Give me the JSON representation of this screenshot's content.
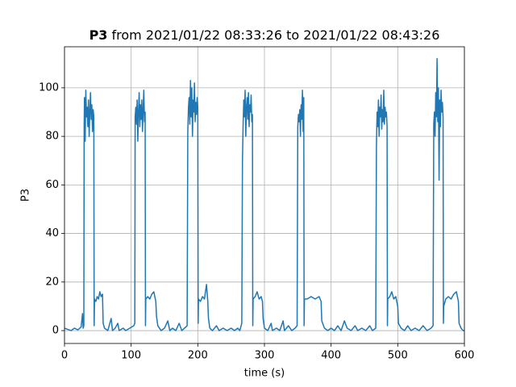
{
  "chart_data": {
    "type": "line",
    "title": {
      "name": "P3",
      "text": "from 2021/01/22 08:33:26 to 2021/01/22 08:43:26"
    },
    "x_label": "time (s)",
    "y_label": "P3",
    "xlim": [
      0,
      600
    ],
    "ylim": [
      -5.3,
      116.9
    ],
    "xticks": [
      0,
      100,
      200,
      300,
      400,
      500,
      600
    ],
    "yticks": [
      0,
      20,
      40,
      60,
      80,
      100
    ],
    "grid": true,
    "series": [
      {
        "name": "P3",
        "color": "#1f77b4",
        "x": [
          0,
          5,
          10,
          15,
          20,
          25,
          27,
          28,
          29,
          29.5,
          30,
          31,
          32,
          33,
          34,
          35,
          36,
          37,
          38,
          39,
          40,
          41,
          42,
          43,
          44,
          44.5,
          45,
          47,
          49,
          51,
          53,
          55,
          57,
          58,
          60,
          65,
          70,
          72,
          76,
          80,
          82,
          88,
          92,
          98,
          104,
          105.5,
          106,
          107,
          108,
          109,
          110,
          111,
          112,
          113,
          114,
          115,
          116,
          117,
          118,
          119,
          120,
          121,
          121.5,
          122,
          125,
          128,
          131,
          134,
          137,
          138,
          140,
          145,
          150,
          155,
          158,
          162,
          167,
          172,
          176,
          180,
          184,
          185,
          186,
          187,
          188,
          189,
          190,
          191,
          192,
          193,
          194,
          195,
          196,
          197,
          198,
          199,
          200,
          200.5,
          201,
          204,
          207,
          210,
          213,
          215,
          216,
          218,
          222,
          228,
          232,
          238,
          244,
          250,
          255,
          260,
          263,
          266,
          267,
          268,
          269,
          270,
          271,
          272,
          273,
          274,
          275,
          276,
          277,
          278,
          279,
          280,
          281,
          282,
          282.5,
          283,
          286,
          289,
          292,
          295,
          297,
          298,
          300,
          305,
          310,
          312,
          318,
          323,
          328,
          330,
          336,
          341,
          346,
          349,
          350,
          351,
          352,
          353,
          354,
          355,
          356,
          357,
          358,
          359,
          359.5,
          360,
          364,
          370,
          376,
          382,
          385,
          386,
          390,
          395,
          400,
          405,
          410,
          415,
          420,
          424,
          430,
          436,
          440,
          446,
          452,
          458,
          462,
          467,
          468,
          469,
          470,
          471,
          472,
          473,
          474,
          475,
          476,
          477,
          478,
          479,
          480,
          481,
          482,
          483,
          484,
          484.5,
          485,
          488,
          491,
          494,
          497,
          500,
          501,
          505,
          510,
          515,
          520,
          526,
          532,
          538,
          544,
          550,
          553,
          554,
          555,
          556,
          557,
          558,
          559,
          560,
          561,
          562,
          563,
          564,
          565,
          566,
          567,
          568,
          568.5,
          569,
          572,
          576,
          580,
          584,
          588,
          591,
          592,
          595,
          598,
          600
        ],
        "values": [
          1,
          0.5,
          0,
          1,
          0.3,
          1.5,
          7,
          1,
          2,
          85,
          96,
          78,
          99,
          88,
          92,
          84,
          95,
          80,
          90,
          98,
          87,
          93,
          82,
          91,
          88,
          2,
          13,
          12,
          14,
          13,
          16,
          14,
          15,
          3,
          1,
          0,
          5,
          0,
          1,
          3,
          0,
          1,
          0,
          1,
          2,
          3,
          88,
          92,
          85,
          95,
          78,
          90,
          98,
          84,
          93,
          87,
          95,
          82,
          91,
          99,
          86,
          90,
          2,
          13,
          14,
          13,
          15,
          16,
          12,
          6,
          2,
          0,
          1,
          4,
          0,
          1,
          0,
          3,
          0,
          1,
          2,
          82,
          92,
          96,
          85,
          103,
          88,
          100,
          80,
          95,
          90,
          102,
          86,
          94,
          89,
          96,
          92,
          3,
          13,
          12,
          14,
          13,
          19,
          12,
          5,
          1,
          0,
          2,
          0,
          1,
          0,
          1,
          0,
          1,
          0,
          3,
          70,
          85,
          95,
          88,
          99,
          80,
          92,
          96,
          87,
          98,
          84,
          93,
          90,
          97,
          86,
          89,
          2,
          13,
          14,
          16,
          13,
          14,
          12,
          5,
          1,
          0,
          3,
          0,
          1,
          0,
          4,
          0,
          2,
          0,
          1,
          2,
          84,
          89,
          86,
          91,
          80,
          93,
          87,
          99,
          82,
          96,
          2,
          13,
          13,
          14,
          13,
          14,
          12,
          4,
          1,
          0,
          1,
          0,
          2,
          0,
          4,
          1,
          0,
          2,
          0,
          1,
          0,
          2,
          0,
          1,
          76,
          90,
          84,
          95,
          80,
          92,
          88,
          97,
          83,
          91,
          86,
          99,
          85,
          92,
          88,
          90,
          84,
          2,
          13,
          14,
          16,
          13,
          14,
          10,
          3,
          1,
          0,
          2,
          0,
          1,
          0,
          2,
          0,
          1,
          2,
          85,
          90,
          80,
          98,
          88,
          112,
          86,
          100,
          62,
          95,
          84,
          99,
          90,
          94,
          88,
          3,
          10,
          13,
          14,
          13,
          15,
          16,
          12,
          3,
          1,
          0,
          0
        ]
      }
    ]
  }
}
